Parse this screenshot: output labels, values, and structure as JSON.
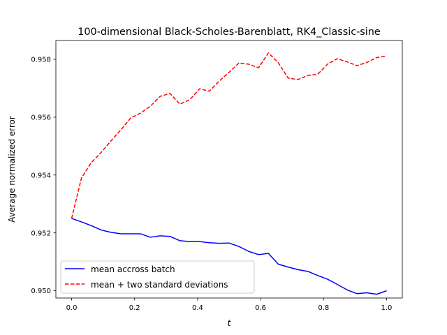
{
  "chart_data": {
    "type": "line",
    "title": "100-dimensional Black-Scholes-Barenblatt, RK4_Classic-sine",
    "xlabel": "t",
    "ylabel": "Average normalized error",
    "xlim": [
      -0.05,
      1.05
    ],
    "ylim": [
      0.94975,
      0.95865
    ],
    "xticks": [
      0.0,
      0.2,
      0.4,
      0.6,
      0.8,
      1.0
    ],
    "xtick_labels": [
      "0.0",
      "0.2",
      "0.4",
      "0.6",
      "0.8",
      "1.0"
    ],
    "yticks": [
      0.95,
      0.952,
      0.954,
      0.956,
      0.958
    ],
    "ytick_labels": [
      "0.950",
      "0.952",
      "0.954",
      "0.956",
      "0.958"
    ],
    "grid": false,
    "legend_position": "lower left",
    "x": [
      0.0,
      0.03125,
      0.0625,
      0.09375,
      0.125,
      0.15625,
      0.1875,
      0.21875,
      0.25,
      0.28125,
      0.3125,
      0.34375,
      0.375,
      0.40625,
      0.4375,
      0.46875,
      0.5,
      0.53125,
      0.5625,
      0.59375,
      0.625,
      0.65625,
      0.6875,
      0.71875,
      0.75,
      0.78125,
      0.8125,
      0.84375,
      0.875,
      0.90625,
      0.9375,
      0.96875,
      1.0
    ],
    "series": [
      {
        "name": "mean accross batch",
        "color": "#0000ff",
        "linestyle": "solid",
        "values": [
          0.9525,
          0.95238,
          0.95225,
          0.9521,
          0.95202,
          0.95197,
          0.95197,
          0.95197,
          0.95185,
          0.9519,
          0.95188,
          0.95173,
          0.9517,
          0.9517,
          0.95166,
          0.95164,
          0.95165,
          0.95153,
          0.95136,
          0.95125,
          0.95129,
          0.95092,
          0.95082,
          0.95073,
          0.95067,
          0.95053,
          0.9504,
          0.95022,
          0.95003,
          0.9499,
          0.94993,
          0.94988,
          0.95
        ]
      },
      {
        "name": "mean + two standard deviations",
        "color": "#ff0000",
        "linestyle": "dashed",
        "values": [
          0.9525,
          0.9539,
          0.95443,
          0.95478,
          0.95518,
          0.95556,
          0.95597,
          0.95614,
          0.95638,
          0.95672,
          0.95682,
          0.95645,
          0.9566,
          0.95698,
          0.9569,
          0.95725,
          0.95755,
          0.95787,
          0.95783,
          0.95771,
          0.95822,
          0.95788,
          0.95735,
          0.9573,
          0.95744,
          0.95748,
          0.95783,
          0.95802,
          0.95791,
          0.95778,
          0.95789,
          0.95806,
          0.95811
        ]
      }
    ]
  }
}
